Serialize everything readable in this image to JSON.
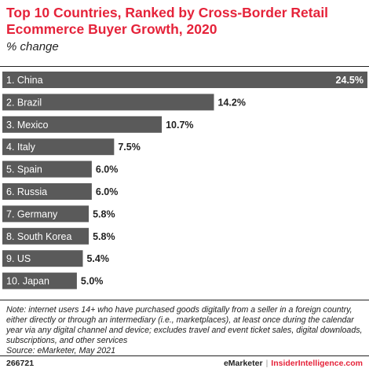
{
  "chart_data": {
    "type": "bar",
    "orientation": "horizontal",
    "title": "Top 10 Countries, Ranked by Cross-Border Retail Ecommerce Buyer Growth, 2020",
    "subtitle": "% change",
    "categories": [
      "1. China",
      "2. Brazil",
      "3. Mexico",
      "4. Italy",
      "5. Spain",
      "6. Russia",
      "7. Germany",
      "8. South Korea",
      "9. US",
      "10. Japan"
    ],
    "values": [
      24.5,
      14.2,
      10.7,
      7.5,
      6.0,
      6.0,
      5.8,
      5.8,
      5.4,
      5.0
    ],
    "value_labels": [
      "24.5%",
      "14.2%",
      "10.7%",
      "7.5%",
      "6.0%",
      "6.0%",
      "5.8%",
      "5.8%",
      "5.4%",
      "5.0%"
    ],
    "bar_color": "#5a5a5a",
    "grid": false,
    "legend": "none"
  },
  "note": "Note: internet users 14+ who have purchased goods digitally from a seller in a foreign country, either directly or through an intermediary (i.e., marketplaces), at least once during the calendar year via any digital channel and device; excludes travel and event ticket sales, digital downloads, subscriptions, and other services",
  "source": "Source: eMarketer, May 2021",
  "footer": {
    "chart_id": "266721",
    "brand_emarketer": "eMarketer",
    "separator": "|",
    "brand_insider": "InsiderIntelligence.com"
  },
  "colors": {
    "title": "#e5233a",
    "bar": "#5a5a5a",
    "rule": "#222222"
  }
}
